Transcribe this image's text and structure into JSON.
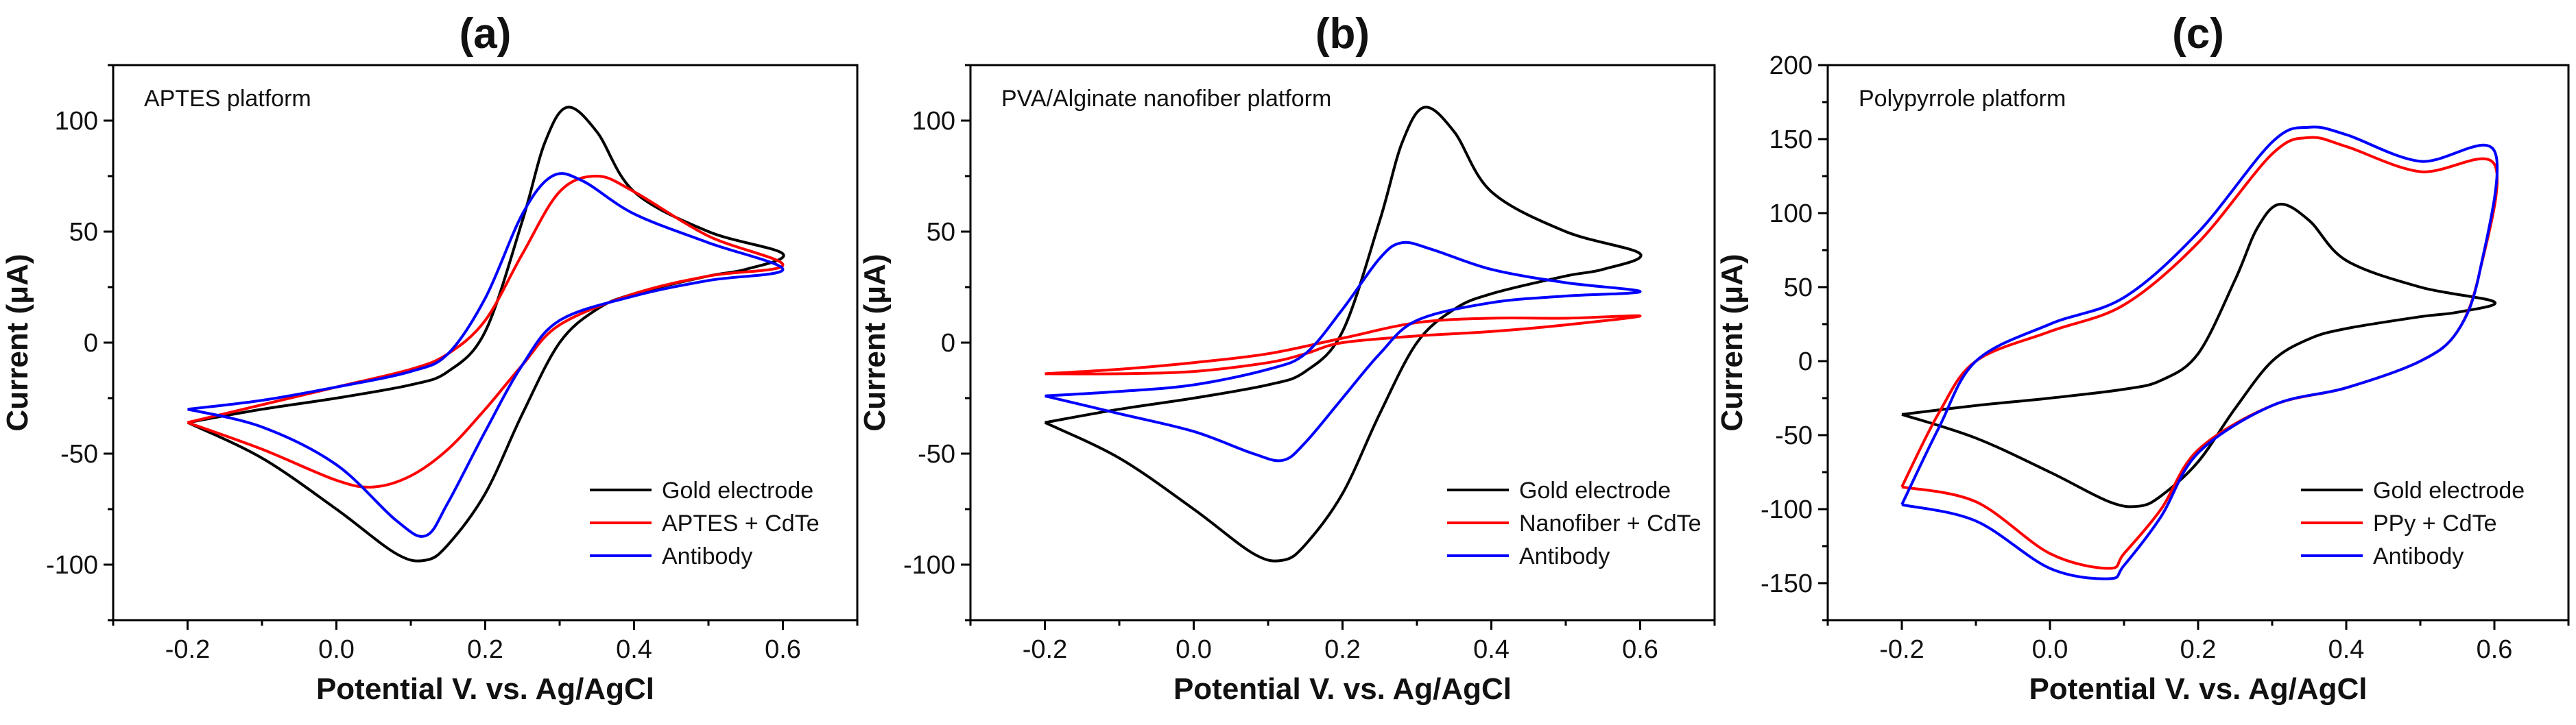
{
  "chart_data": [
    {
      "type": "line",
      "panel_label": "(a)",
      "annotation": "APTES platform",
      "xlabel": "Potential V. vs. Ag/AgCl",
      "ylabel": "Current (μA)",
      "xlim": [
        -0.3,
        0.7
      ],
      "ylim": [
        -125,
        125
      ],
      "xticks": [
        -0.2,
        0.0,
        0.2,
        0.4,
        0.6
      ],
      "xtick_labels": [
        "-0.2",
        "0.0",
        "0.2",
        "0.4",
        "0.6"
      ],
      "yticks": [
        -100,
        -50,
        0,
        50,
        100
      ],
      "ytick_labels": [
        "-100",
        "-50",
        "0",
        "50",
        "100"
      ],
      "legend_position": "bottom-right",
      "series": [
        {
          "name": "Gold electrode",
          "color": "#000000",
          "x": [
            -0.2,
            -0.1,
            0.0,
            0.1,
            0.15,
            0.2,
            0.25,
            0.28,
            0.31,
            0.35,
            0.4,
            0.5,
            0.6,
            0.55,
            0.5,
            0.4,
            0.35,
            0.3,
            0.25,
            0.2,
            0.15,
            0.12,
            0.08,
            0.0,
            -0.1,
            -0.2
          ],
          "y": [
            -36,
            -30,
            -25,
            -19,
            -13,
            5,
            55,
            90,
            106,
            95,
            68,
            50,
            40,
            33,
            30,
            22,
            15,
            0,
            -32,
            -68,
            -91,
            -98,
            -95,
            -75,
            -52,
            -36
          ]
        },
        {
          "name": "APTES + CdTe",
          "color": "#ff0000",
          "x": [
            -0.2,
            -0.1,
            0.0,
            0.1,
            0.15,
            0.2,
            0.25,
            0.3,
            0.35,
            0.4,
            0.5,
            0.6,
            0.5,
            0.4,
            0.3,
            0.25,
            0.2,
            0.15,
            0.1,
            0.05,
            0.0,
            -0.1,
            -0.2
          ],
          "y": [
            -36,
            -28,
            -20,
            -12,
            -5,
            10,
            40,
            68,
            75,
            68,
            48,
            35,
            30,
            22,
            8,
            -10,
            -30,
            -48,
            -60,
            -65,
            -62,
            -48,
            -36
          ]
        },
        {
          "name": "Antibody",
          "color": "#0000ff",
          "x": [
            -0.2,
            -0.1,
            0.0,
            0.1,
            0.15,
            0.2,
            0.25,
            0.29,
            0.33,
            0.4,
            0.5,
            0.6,
            0.5,
            0.4,
            0.3,
            0.25,
            0.2,
            0.15,
            0.12,
            0.08,
            0.0,
            -0.1,
            -0.2
          ],
          "y": [
            -30,
            -26,
            -20,
            -13,
            -5,
            20,
            58,
            75,
            73,
            58,
            45,
            33,
            28,
            21,
            10,
            -10,
            -40,
            -72,
            -87,
            -80,
            -55,
            -38,
            -30
          ]
        }
      ]
    },
    {
      "type": "line",
      "panel_label": "(b)",
      "annotation": "PVA/Alginate nanofiber platform",
      "xlabel": "Potential V. vs. Ag/AgCl",
      "ylabel": "Current (μA)",
      "xlim": [
        -0.3,
        0.7
      ],
      "ylim": [
        -125,
        125
      ],
      "xticks": [
        -0.2,
        0.0,
        0.2,
        0.4,
        0.6
      ],
      "xtick_labels": [
        "-0.2",
        "0.0",
        "0.2",
        "0.4",
        "0.6"
      ],
      "yticks": [
        -100,
        -50,
        0,
        50,
        100
      ],
      "ytick_labels": [
        "-100",
        "-50",
        "0",
        "50",
        "100"
      ],
      "legend_position": "bottom-right",
      "series": [
        {
          "name": "Gold electrode",
          "color": "#000000",
          "x": [
            -0.2,
            -0.1,
            0.0,
            0.1,
            0.15,
            0.2,
            0.25,
            0.28,
            0.31,
            0.35,
            0.4,
            0.5,
            0.6,
            0.55,
            0.5,
            0.4,
            0.35,
            0.3,
            0.25,
            0.2,
            0.15,
            0.12,
            0.08,
            0.0,
            -0.1,
            -0.2
          ],
          "y": [
            -36,
            -30,
            -25,
            -19,
            -13,
            5,
            55,
            90,
            106,
            95,
            68,
            50,
            40,
            33,
            30,
            22,
            15,
            0,
            -32,
            -68,
            -91,
            -98,
            -95,
            -75,
            -52,
            -36
          ]
        },
        {
          "name": "Nanofiber + CdTe",
          "color": "#ff0000",
          "x": [
            -0.2,
            -0.1,
            0.0,
            0.1,
            0.2,
            0.3,
            0.4,
            0.5,
            0.6,
            0.5,
            0.4,
            0.3,
            0.2,
            0.15,
            0.1,
            0.0,
            -0.1,
            -0.2
          ],
          "y": [
            -14,
            -12,
            -9,
            -5,
            2,
            9,
            11,
            11,
            12,
            8,
            5,
            3,
            0,
            -5,
            -9,
            -13,
            -14,
            -14
          ]
        },
        {
          "name": "Antibody",
          "color": "#0000ff",
          "x": [
            -0.2,
            -0.1,
            0.0,
            0.1,
            0.15,
            0.2,
            0.25,
            0.28,
            0.32,
            0.4,
            0.5,
            0.6,
            0.5,
            0.4,
            0.3,
            0.25,
            0.2,
            0.15,
            0.12,
            0.08,
            0.0,
            -0.1,
            -0.2
          ],
          "y": [
            -24,
            -22,
            -19,
            -12,
            -5,
            15,
            38,
            45,
            42,
            33,
            27,
            23,
            21,
            18,
            10,
            -5,
            -25,
            -45,
            -53,
            -50,
            -40,
            -32,
            -24
          ]
        }
      ]
    },
    {
      "type": "line",
      "panel_label": "(c)",
      "annotation": "Polypyrrole platform",
      "xlabel": "Potential V. vs. Ag/AgCl",
      "ylabel": "Current (μA)",
      "xlim": [
        -0.3,
        0.7
      ],
      "ylim": [
        -175,
        200
      ],
      "xticks": [
        -0.2,
        0.0,
        0.2,
        0.4,
        0.6
      ],
      "xtick_labels": [
        "-0.2",
        "0.0",
        "0.2",
        "0.4",
        "0.6"
      ],
      "yticks": [
        -150,
        -100,
        -50,
        0,
        50,
        100,
        150,
        200
      ],
      "ytick_labels": [
        "-150",
        "-100",
        "-50",
        "0",
        "50",
        "100",
        "150",
        "200"
      ],
      "legend_position": "bottom-right",
      "series": [
        {
          "name": "Gold electrode",
          "color": "#000000",
          "x": [
            -0.2,
            -0.1,
            0.0,
            0.1,
            0.15,
            0.2,
            0.25,
            0.28,
            0.31,
            0.35,
            0.4,
            0.5,
            0.6,
            0.55,
            0.5,
            0.4,
            0.35,
            0.3,
            0.25,
            0.2,
            0.15,
            0.12,
            0.08,
            0.0,
            -0.1,
            -0.2
          ],
          "y": [
            -36,
            -30,
            -25,
            -19,
            -13,
            5,
            55,
            90,
            106,
            95,
            68,
            50,
            40,
            33,
            30,
            22,
            15,
            0,
            -32,
            -68,
            -91,
            -98,
            -95,
            -75,
            -52,
            -36
          ]
        },
        {
          "name": "PPy + CdTe",
          "color": "#ff0000",
          "x": [
            -0.2,
            -0.15,
            -0.1,
            0.0,
            0.1,
            0.2,
            0.3,
            0.35,
            0.4,
            0.5,
            0.6,
            0.58,
            0.55,
            0.5,
            0.4,
            0.3,
            0.2,
            0.15,
            0.1,
            0.08,
            0.0,
            -0.1,
            -0.2
          ],
          "y": [
            -85,
            -35,
            0,
            20,
            38,
            80,
            140,
            151,
            145,
            128,
            133,
            60,
            20,
            0,
            -18,
            -30,
            -60,
            -100,
            -130,
            -140,
            -130,
            -95,
            -85
          ]
        },
        {
          "name": "Antibody",
          "color": "#0000ff",
          "x": [
            -0.2,
            -0.15,
            -0.1,
            0.0,
            0.1,
            0.2,
            0.3,
            0.35,
            0.4,
            0.5,
            0.6,
            0.58,
            0.55,
            0.5,
            0.4,
            0.3,
            0.2,
            0.15,
            0.1,
            0.08,
            0.0,
            -0.1,
            -0.2
          ],
          "y": [
            -97,
            -45,
            0,
            25,
            43,
            87,
            148,
            158,
            153,
            135,
            142,
            60,
            20,
            0,
            -18,
            -30,
            -62,
            -105,
            -138,
            -147,
            -140,
            -108,
            -97
          ]
        }
      ]
    }
  ]
}
